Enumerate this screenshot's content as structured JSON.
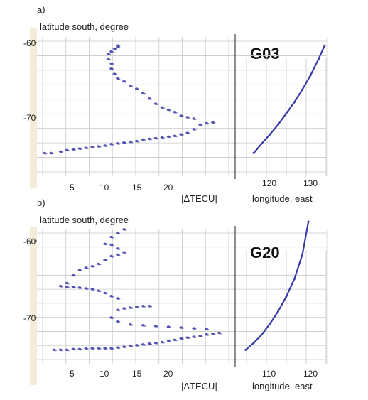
{
  "panels": [
    {
      "tag": "a)",
      "ylabel": "latitude south, degree",
      "yticks": [
        "-60",
        "-70"
      ],
      "xticks": [
        "5",
        "10",
        "15",
        "20"
      ],
      "xlabel": "|ΔTECU|",
      "sat": "G03",
      "lon_ticks": [
        "120",
        "130"
      ],
      "lon_label": "longitude, east"
    },
    {
      "tag": "b)",
      "ylabel": "latitude south, degree",
      "yticks": [
        "-60",
        "-70"
      ],
      "xticks": [
        "5",
        "10",
        "15",
        "20"
      ],
      "xlabel": "|ΔTECU|",
      "sat": "G20",
      "lon_ticks": [
        "110",
        "120"
      ],
      "lon_label": "longitude, east"
    }
  ],
  "colors": {
    "points": "#3a3aa8",
    "grid": "#c8c8c8",
    "axis": "#444444",
    "fade": "#f3ecd8"
  },
  "chart_data": [
    {
      "type": "scatter",
      "title": "G03",
      "xlabel": "|ΔTECU|",
      "ylabel": "latitude south, degree",
      "xlim": [
        0,
        30
      ],
      "ylim": [
        -75,
        -59
      ],
      "x": [
        0.5,
        1.5,
        3,
        4,
        5,
        6,
        7,
        8,
        9,
        10,
        11,
        12,
        13,
        14,
        15,
        16,
        17,
        18,
        19,
        20,
        21,
        22,
        23,
        24,
        25,
        26,
        27,
        24,
        23,
        22,
        21,
        20,
        19,
        18,
        17,
        16,
        15,
        14,
        13,
        12,
        11.5,
        11,
        11,
        10.5,
        10.5,
        11,
        11.5,
        12,
        12
      ],
      "y": [
        -74.8,
        -74.8,
        -74.6,
        -74.4,
        -74.3,
        -74.2,
        -74.1,
        -74,
        -73.9,
        -73.8,
        -73.6,
        -73.5,
        -73.4,
        -73.3,
        -73.2,
        -73,
        -72.9,
        -72.8,
        -72.7,
        -72.6,
        -72.5,
        -72.3,
        -72.1,
        -71.6,
        -71,
        -70.8,
        -70.7,
        -70.2,
        -70,
        -69.8,
        -69.3,
        -69,
        -68.7,
        -68.2,
        -67.5,
        -66.8,
        -66.2,
        -65.8,
        -65.2,
        -64.8,
        -64.2,
        -63.5,
        -62.8,
        -62.2,
        -61.5,
        -61.2,
        -60.8,
        -60.6,
        -60.4
      ]
    },
    {
      "type": "line",
      "title": "G03",
      "xlabel": "longitude, east",
      "ylabel": "latitude south, degree",
      "x": [
        116,
        118,
        120,
        122,
        124,
        126,
        128,
        130,
        132,
        133.5
      ],
      "y": [
        -74.8,
        -73.5,
        -72.3,
        -71,
        -69.5,
        -68,
        -66.3,
        -64.4,
        -62.2,
        -60.4
      ]
    },
    {
      "type": "scatter",
      "title": "G20",
      "xlabel": "|ΔTECU|",
      "ylabel": "latitude south, degree",
      "xlim": [
        0,
        30
      ],
      "ylim": [
        -75,
        -57
      ],
      "x": [
        2,
        3,
        4,
        5,
        6,
        7,
        8,
        9,
        10,
        11,
        12,
        13,
        14,
        15,
        16,
        17,
        18,
        19,
        20,
        21,
        22,
        23,
        24,
        25,
        26,
        27,
        28,
        26,
        24,
        22,
        20,
        18,
        16,
        14,
        12,
        11,
        12,
        13,
        14,
        15,
        16,
        17,
        12,
        11,
        10,
        9,
        8,
        7,
        6,
        5,
        4,
        3,
        4,
        5,
        6,
        7,
        8,
        9,
        10,
        11,
        12,
        13,
        12,
        11,
        10,
        11,
        12,
        13
      ],
      "y": [
        -74.2,
        -74.2,
        -74.2,
        -74.1,
        -74.1,
        -74,
        -74,
        -74,
        -74,
        -74,
        -73.9,
        -73.8,
        -73.7,
        -73.6,
        -73.5,
        -73.4,
        -73.3,
        -73.2,
        -73,
        -72.9,
        -72.7,
        -72.6,
        -72.5,
        -72.4,
        -72.2,
        -72.1,
        -72,
        -71.5,
        -71.4,
        -71.3,
        -71.2,
        -71.1,
        -71,
        -70.9,
        -70.5,
        -70,
        -69,
        -68.8,
        -68.7,
        -68.6,
        -68.5,
        -68.5,
        -67.5,
        -67.2,
        -66.8,
        -66.5,
        -66.3,
        -66.2,
        -66.1,
        -66,
        -66,
        -65.9,
        -65.5,
        -64.5,
        -63.8,
        -63.5,
        -63.3,
        -63,
        -62.5,
        -62,
        -61.8,
        -61.5,
        -61,
        -60.5,
        -60.4,
        -59.5,
        -59,
        -58.5
      ]
    },
    {
      "type": "line",
      "title": "G20",
      "xlabel": "longitude, east",
      "ylabel": "latitude south, degree",
      "x": [
        104,
        106,
        108,
        110,
        112,
        114,
        116,
        118,
        119.5
      ],
      "y": [
        -74.2,
        -73.3,
        -72.2,
        -70.8,
        -69.2,
        -67.3,
        -65,
        -61.8,
        -57.5
      ]
    }
  ]
}
